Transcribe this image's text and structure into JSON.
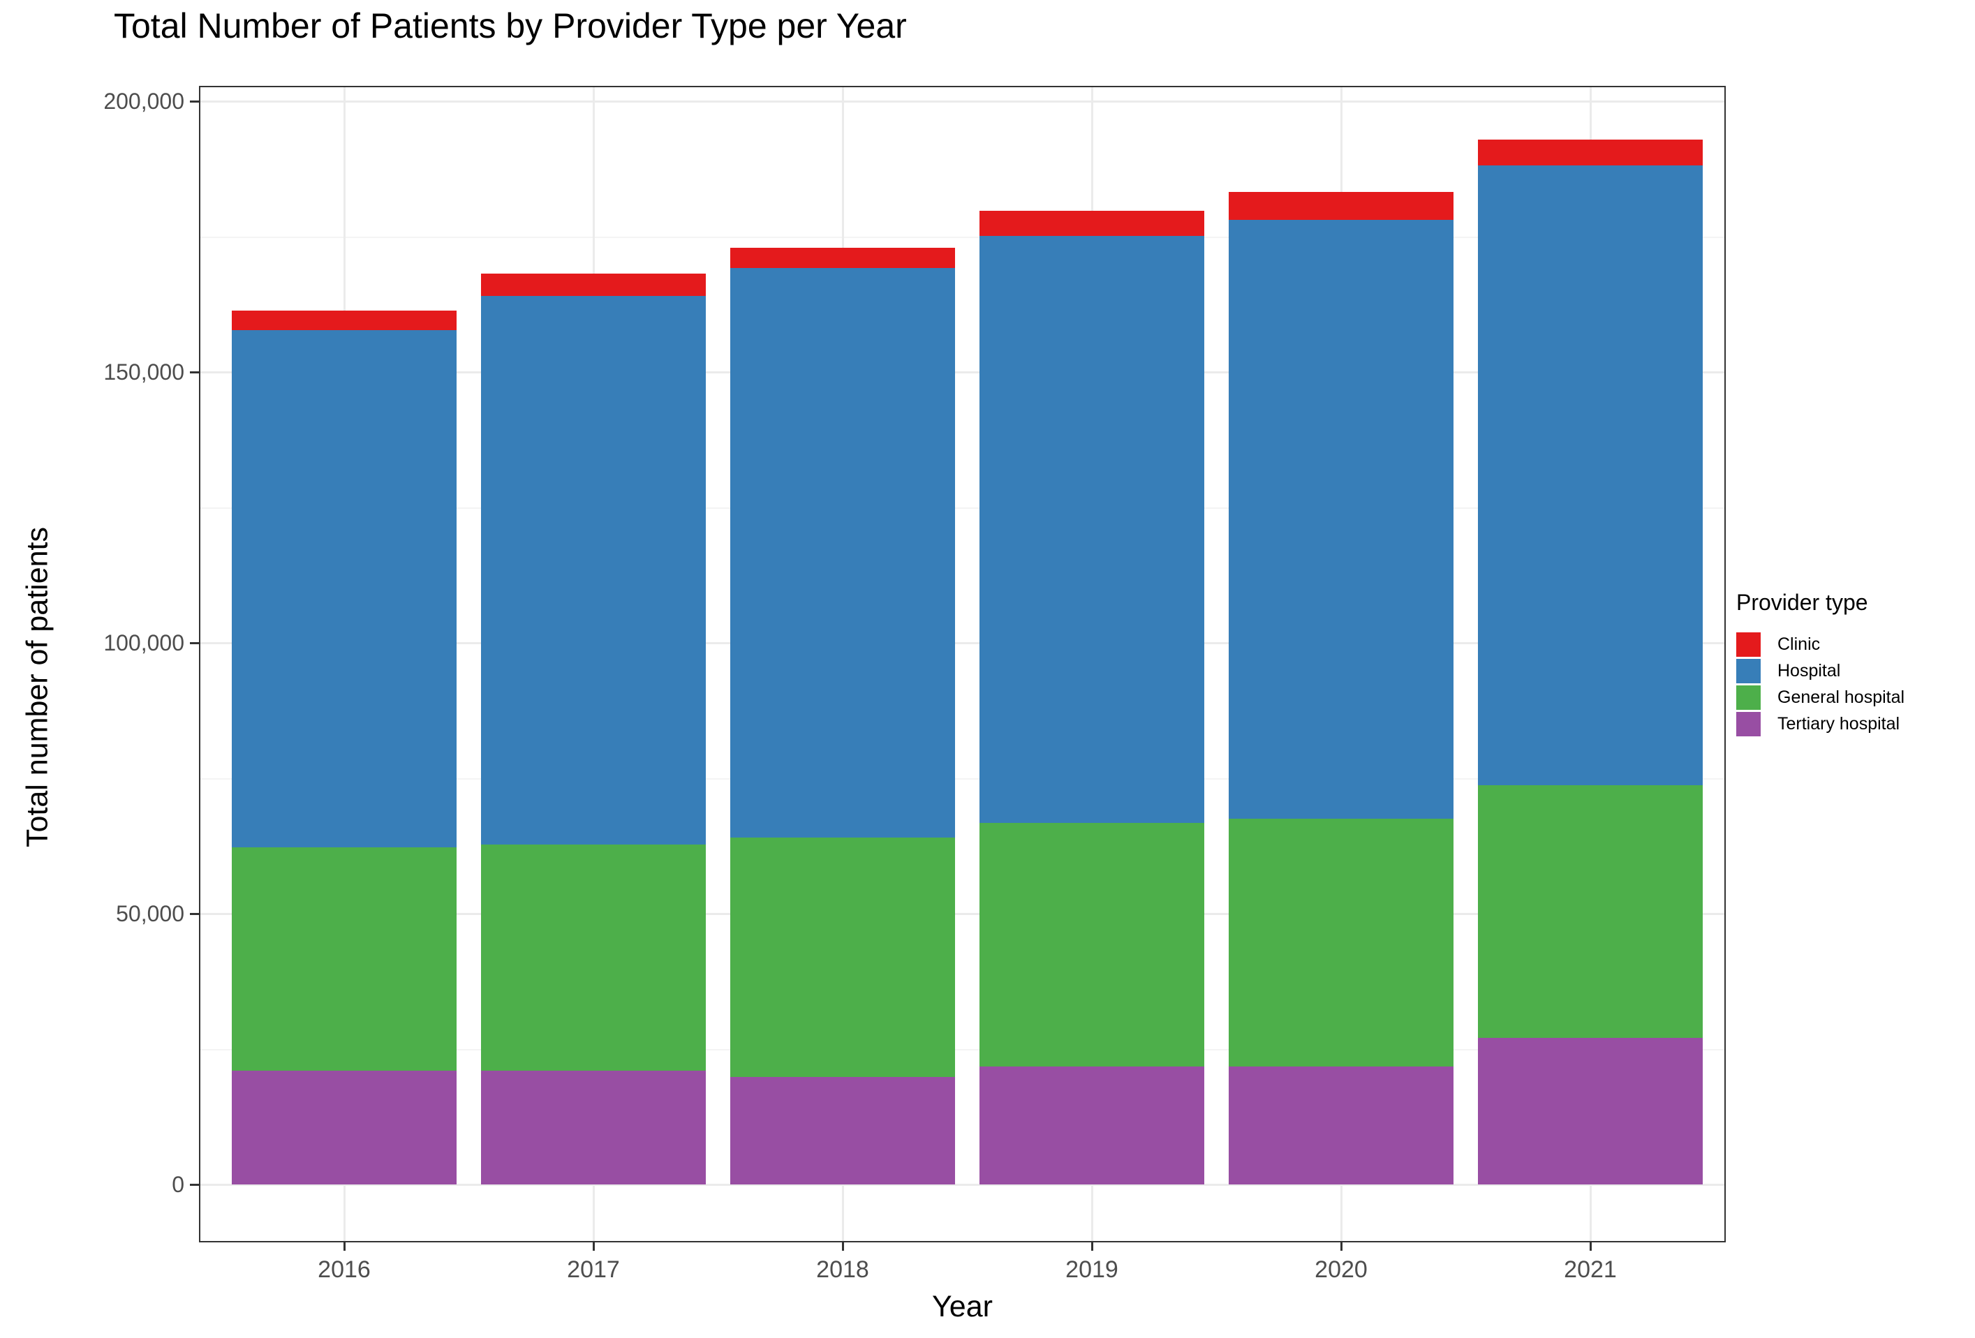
{
  "chart_data": {
    "type": "bar",
    "stacked": true,
    "title": "Total Number of Patients by Provider Type per Year",
    "xlabel": "Year",
    "ylabel": "Total number of patients",
    "categories": [
      "2016",
      "2017",
      "2018",
      "2019",
      "2020",
      "2021"
    ],
    "series": [
      {
        "name": "Clinic",
        "color": "#E41A1C",
        "values": [
          3600,
          4200,
          3700,
          4700,
          5200,
          4800
        ]
      },
      {
        "name": "Hospital",
        "color": "#377EB8",
        "values": [
          95400,
          101300,
          105200,
          108300,
          110600,
          114400
        ]
      },
      {
        "name": "General hospital",
        "color": "#4DAF4A",
        "values": [
          41300,
          41700,
          44200,
          45000,
          45700,
          46600
        ]
      },
      {
        "name": "Tertiary hospital",
        "color": "#984EA3",
        "values": [
          21000,
          21000,
          19800,
          21800,
          21800,
          27100
        ]
      }
    ],
    "stack_order_bottom_to_top": [
      "Tertiary hospital",
      "General hospital",
      "Hospital",
      "Clinic"
    ],
    "totals": [
      161300,
      168200,
      172900,
      179800,
      183300,
      192900
    ],
    "ylim": [
      0,
      200000
    ],
    "yticks": [
      {
        "value": 0,
        "label": "0"
      },
      {
        "value": 50000,
        "label": "50,000"
      },
      {
        "value": 100000,
        "label": "100,000"
      },
      {
        "value": 150000,
        "label": "150,000"
      },
      {
        "value": 200000,
        "label": "200,000"
      }
    ],
    "yminor": [
      25000,
      75000,
      125000,
      175000
    ],
    "grid": {
      "on": true,
      "major_color": "#EBEBEB",
      "minor_color": "#F4F4F4"
    },
    "panel_border_color": "#333333",
    "legend": {
      "title": "Provider type",
      "position": "right",
      "items": [
        {
          "label": "Clinic",
          "color": "#E41A1C"
        },
        {
          "label": "Hospital",
          "color": "#377EB8"
        },
        {
          "label": "General hospital",
          "color": "#4DAF4A"
        },
        {
          "label": "Tertiary hospital",
          "color": "#984EA3"
        }
      ]
    }
  }
}
